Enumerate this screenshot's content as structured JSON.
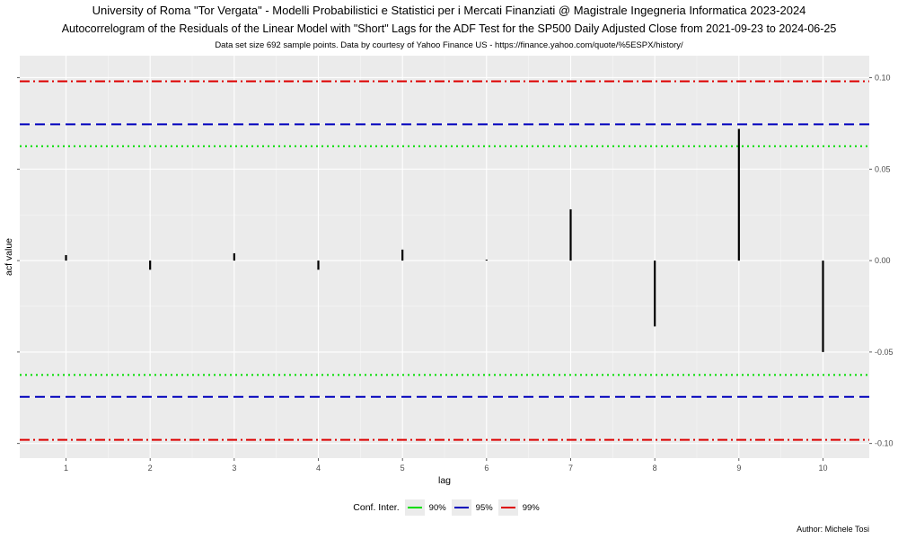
{
  "title": "University of Roma \"Tor Vergata\" - Modelli Probabilistici e Statistici per i Mercati Finanziati @ Magistrale Ingegneria Informatica 2023-2024",
  "subtitle": "Autocorrelogram of the Residuals of the Linear Model with \"Short\" Lags for the ADF Test for the SP500 Daily Adjusted Close from 2021-09-23 to 2024-06-25",
  "caption": "Data set size 692 sample points. Data by courtesy of Yahoo Finance US - https://finance.yahoo.com/quote/%5ESPX/history/",
  "author": "Author: Michele Tosi",
  "legend": {
    "title": "Conf. Inter.",
    "items": [
      {
        "label": "90%",
        "color": "#00dd00"
      },
      {
        "label": "95%",
        "color": "#0000bb"
      },
      {
        "label": "99%",
        "color": "#dd0000"
      }
    ]
  },
  "chart_data": {
    "type": "bar",
    "xlabel": "lag",
    "ylabel": "acf value",
    "x": [
      1,
      2,
      3,
      4,
      5,
      6,
      7,
      8,
      9,
      10
    ],
    "values": [
      0.003,
      -0.005,
      0.004,
      -0.005,
      0.006,
      0.0005,
      0.028,
      -0.036,
      0.072,
      -0.05
    ],
    "ylim": [
      -0.108,
      0.112
    ],
    "y_ticks": [
      -0.1,
      -0.05,
      0.0,
      0.05,
      0.1
    ],
    "y_tick_labels": [
      "-0.10",
      "-0.05",
      "0.00",
      "0.05",
      "0.10"
    ],
    "confidence_bands": [
      {
        "level": "90%",
        "value": 0.0625,
        "color": "#00dd00",
        "style": "dotted"
      },
      {
        "level": "95%",
        "value": 0.0745,
        "color": "#0000bb",
        "style": "dashed"
      },
      {
        "level": "99%",
        "value": 0.098,
        "color": "#dd0000",
        "style": "dashdot"
      }
    ],
    "grid": true,
    "legend_position": "bottom"
  }
}
